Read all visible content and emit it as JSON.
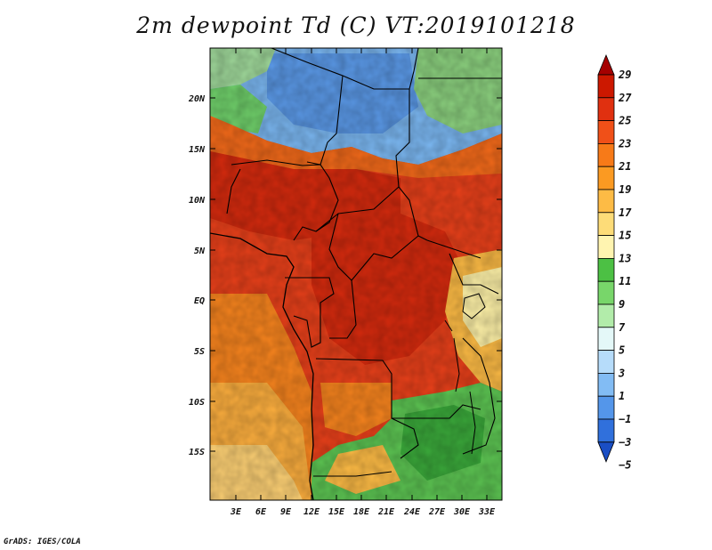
{
  "title": "2m dewpoint Td (C) VT:2019101218",
  "footer": "GrADS: IGES/COLA",
  "map": {
    "lat_labels": [
      "20N",
      "15N",
      "10N",
      "5N",
      "EQ",
      "5S",
      "10S",
      "15S"
    ],
    "lon_labels": [
      "3E",
      "6E",
      "9E",
      "12E",
      "15E",
      "18E",
      "21E",
      "24E",
      "27E",
      "30E",
      "33E"
    ]
  },
  "colorbar": {
    "labels": [
      "29",
      "27",
      "25",
      "23",
      "21",
      "19",
      "17",
      "15",
      "13",
      "11",
      "9",
      "7",
      "5",
      "3",
      "1",
      "−1",
      "−3",
      "−5"
    ],
    "colors": [
      "#a50000",
      "#cc1800",
      "#e03010",
      "#f05018",
      "#f77a18",
      "#fb9a22",
      "#fdbb45",
      "#fddc78",
      "#fff4b0",
      "#4cc044",
      "#78d66a",
      "#b2ecaa",
      "#e4f8f8",
      "#b6dcfa",
      "#82bcf4",
      "#5496ea",
      "#3070dc",
      "#1a4ec4"
    ]
  }
}
